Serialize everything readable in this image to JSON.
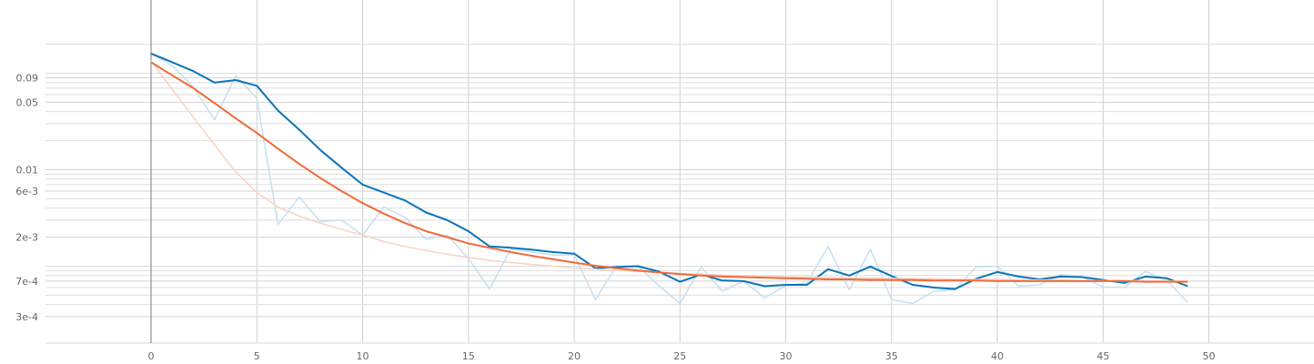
{
  "chart_data": {
    "type": "line",
    "title": "",
    "xlabel": "",
    "ylabel": "",
    "y_scale": "log",
    "grid": true,
    "xlim": [
      -5,
      55
    ],
    "ylim": [
      0.00022,
      0.16
    ],
    "x_ticks": [
      0,
      5,
      10,
      15,
      20,
      25,
      30,
      35,
      40,
      45,
      50
    ],
    "y_ticks": [
      {
        "value": 0.09,
        "label": "0.09"
      },
      {
        "value": 0.05,
        "label": "0.05"
      },
      {
        "value": 0.01,
        "label": "0.01"
      },
      {
        "value": 0.006,
        "label": "6e-3"
      },
      {
        "value": 0.002,
        "label": "2e-3"
      },
      {
        "value": 0.0007,
        "label": "7e-4"
      },
      {
        "value": 0.0003,
        "label": "3e-4"
      }
    ],
    "y_minor_gridlines": [
      0.0004,
      0.0005,
      0.0006,
      0.0008,
      0.0009,
      0.001,
      0.003,
      0.004,
      0.005,
      0.007,
      0.008,
      0.009,
      0.02,
      0.03,
      0.04,
      0.06,
      0.07,
      0.08,
      0.1,
      0.2
    ],
    "series": [
      {
        "name": "",
        "role": "raw",
        "color": "#c6dff0",
        "x": [
          0,
          1,
          2,
          3,
          4,
          5,
          6,
          7,
          8,
          9,
          10,
          11,
          12,
          13,
          14,
          15,
          16,
          17,
          18,
          19,
          20,
          21,
          22,
          23,
          24,
          25,
          26,
          27,
          28,
          29,
          30,
          31,
          32,
          33,
          34,
          35,
          36,
          37,
          38,
          39,
          40,
          41,
          42,
          43,
          44,
          45,
          46,
          47,
          48,
          49
        ],
        "values": [
          0.16,
          0.12,
          0.072,
          0.033,
          0.094,
          0.055,
          0.0027,
          0.0052,
          0.0029,
          0.003,
          0.0021,
          0.0041,
          0.0032,
          0.0019,
          0.0021,
          0.0012,
          0.00058,
          0.0015,
          0.0014,
          0.0013,
          0.0013,
          0.00045,
          0.001,
          0.001,
          0.00063,
          0.00041,
          0.00098,
          0.00055,
          0.0007,
          0.00047,
          0.00063,
          0.00067,
          0.0016,
          0.00057,
          0.0015,
          0.00045,
          0.00041,
          0.00055,
          0.00057,
          0.00098,
          0.001,
          0.00062,
          0.00064,
          0.00082,
          0.00078,
          0.00061,
          0.0006,
          0.00088,
          0.00072,
          0.00042
        ]
      },
      {
        "name": "",
        "role": "smoothed",
        "color": "#0b74b8",
        "x": [
          0,
          1,
          2,
          3,
          4,
          5,
          6,
          7,
          8,
          9,
          10,
          11,
          12,
          13,
          14,
          15,
          16,
          17,
          18,
          19,
          20,
          21,
          22,
          23,
          24,
          25,
          26,
          27,
          28,
          29,
          30,
          31,
          32,
          33,
          34,
          35,
          36,
          37,
          38,
          39,
          40,
          41,
          42,
          43,
          44,
          45,
          46,
          47,
          48,
          49
        ],
        "values": [
          0.16,
          0.13,
          0.105,
          0.08,
          0.085,
          0.074,
          0.041,
          0.026,
          0.016,
          0.0105,
          0.007,
          0.0058,
          0.0048,
          0.0036,
          0.003,
          0.0023,
          0.0016,
          0.00155,
          0.00148,
          0.0014,
          0.00135,
          0.00095,
          0.00098,
          0.001,
          0.00088,
          0.00069,
          0.00082,
          0.00071,
          0.0007,
          0.00062,
          0.00064,
          0.00064,
          0.00093,
          0.0008,
          0.00099,
          0.00079,
          0.00064,
          0.0006,
          0.00058,
          0.00074,
          0.00087,
          0.00078,
          0.00073,
          0.00078,
          0.00077,
          0.00072,
          0.00067,
          0.00078,
          0.00075,
          0.00062
        ]
      },
      {
        "name": "",
        "role": "raw",
        "color": "#f8d2c4",
        "x": [
          0,
          1,
          2,
          3,
          4,
          5,
          6,
          7,
          8,
          9,
          10,
          11,
          12,
          13,
          14,
          15,
          16,
          17,
          18,
          19,
          20,
          21,
          22,
          23,
          24,
          25,
          26,
          27,
          28,
          29,
          30,
          31,
          32,
          33,
          34,
          35,
          36,
          37,
          38,
          39,
          40,
          41,
          42,
          43,
          44,
          45,
          46,
          47,
          48,
          49
        ],
        "values": [
          0.135,
          0.068,
          0.035,
          0.018,
          0.0095,
          0.0058,
          0.0041,
          0.0033,
          0.0028,
          0.0024,
          0.0021,
          0.0018,
          0.0016,
          0.00145,
          0.00133,
          0.00123,
          0.00115,
          0.00109,
          0.00104,
          0.001,
          0.00096,
          0.00093,
          0.0009,
          0.00088,
          0.00086,
          0.00084,
          0.00082,
          0.00081,
          0.0008,
          0.00079,
          0.00078,
          0.00077,
          0.00076,
          0.00076,
          0.00075,
          0.00075,
          0.00074,
          0.00074,
          0.00073,
          0.00073,
          0.00073,
          0.00072,
          0.00072,
          0.00072,
          0.00071,
          0.00071,
          0.00071,
          0.00071,
          0.0007,
          0.0007
        ]
      },
      {
        "name": "",
        "role": "smoothed",
        "color": "#f06b3a",
        "x": [
          0,
          1,
          2,
          3,
          4,
          5,
          6,
          7,
          8,
          9,
          10,
          11,
          12,
          13,
          14,
          15,
          16,
          17,
          18,
          19,
          20,
          21,
          22,
          23,
          24,
          25,
          26,
          27,
          28,
          29,
          30,
          31,
          32,
          33,
          34,
          35,
          36,
          37,
          38,
          39,
          40,
          41,
          42,
          43,
          44,
          45,
          46,
          47,
          48,
          49
        ],
        "values": [
          0.13,
          0.095,
          0.07,
          0.049,
          0.034,
          0.024,
          0.0165,
          0.0115,
          0.0082,
          0.006,
          0.0045,
          0.0035,
          0.0028,
          0.0023,
          0.002,
          0.00172,
          0.00155,
          0.0014,
          0.00128,
          0.00118,
          0.00109,
          0.00101,
          0.00095,
          0.0009,
          0.00086,
          0.00083,
          0.0008,
          0.00078,
          0.00077,
          0.00076,
          0.00075,
          0.00074,
          0.00073,
          0.00073,
          0.00072,
          0.00072,
          0.00072,
          0.00071,
          0.00071,
          0.00071,
          0.0007,
          0.0007,
          0.0007,
          0.0007,
          0.0007,
          0.0007,
          0.0007,
          0.00069,
          0.00069,
          0.00069
        ]
      }
    ]
  }
}
